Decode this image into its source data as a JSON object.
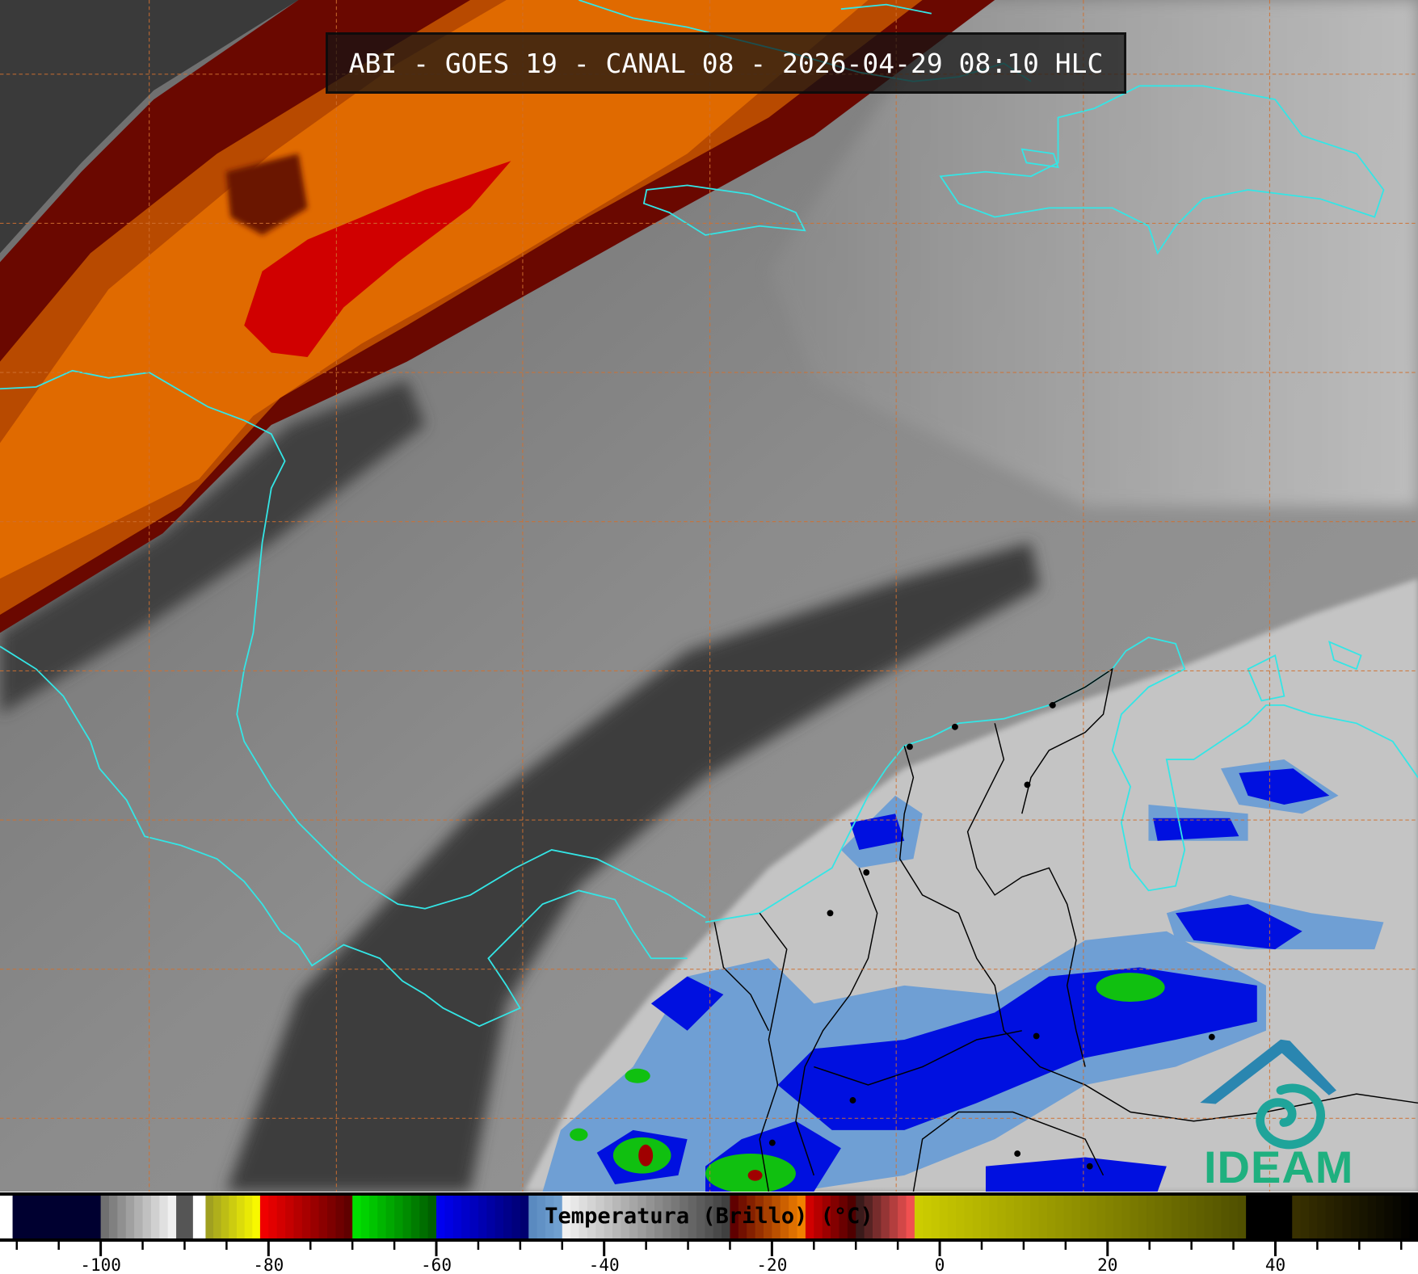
{
  "title": "ABI - GOES 19 - CANAL 08 - 2026-04-29 08:10 HLC",
  "logo": {
    "text": "IDEAM",
    "color": "#1fb07f",
    "roof_color": "#2a86b0",
    "swirl_color": "#1fa49a"
  },
  "colorbar": {
    "label": "Temperatura (Brillo) (°C)",
    "range": [
      -112,
      57
    ],
    "major_ticks": [
      -100,
      -80,
      -60,
      -40,
      -20,
      0,
      20,
      40
    ],
    "major_tick_labels": [
      "-100",
      "-80",
      "-60",
      "-40",
      "-20",
      "0",
      "20",
      "40"
    ],
    "minor_tick_step": 5,
    "segments": [
      [
        -112,
        -110.5,
        "#ffffff",
        "#ffffff"
      ],
      [
        -110.5,
        -100,
        "#000030",
        "#000030"
      ],
      [
        -100,
        -91,
        "#707070",
        "#f0f0f0"
      ],
      [
        -91,
        -89,
        "#555555",
        "#555555"
      ],
      [
        -89,
        -87.5,
        "#ffffff",
        "#ffffff"
      ],
      [
        -87.5,
        -81,
        "#a0a020",
        "#f8f800"
      ],
      [
        -81,
        -70,
        "#f00000",
        "#600000"
      ],
      [
        -70,
        -60,
        "#00e000",
        "#006000"
      ],
      [
        -60,
        -49,
        "#0000f0",
        "#000070"
      ],
      [
        -49,
        -45,
        "#5a8ac0",
        "#70a0d0"
      ],
      [
        -45,
        -25,
        "#f0f0f0",
        "#404040"
      ],
      [
        -25,
        -16,
        "#600000",
        "#f08000"
      ],
      [
        -16,
        -10,
        "#d00000",
        "#500000"
      ],
      [
        -10,
        -3,
        "#3a1a1a",
        "#f05050"
      ],
      [
        -3,
        36.5,
        "#cccc00",
        "#505000"
      ],
      [
        36.5,
        42,
        "#000000",
        "#000000"
      ],
      [
        42,
        57,
        "#383000",
        "#000000"
      ]
    ]
  },
  "colors": {
    "coastline": "#33e6e6",
    "borders": "#000000",
    "grid": "#d07030"
  }
}
